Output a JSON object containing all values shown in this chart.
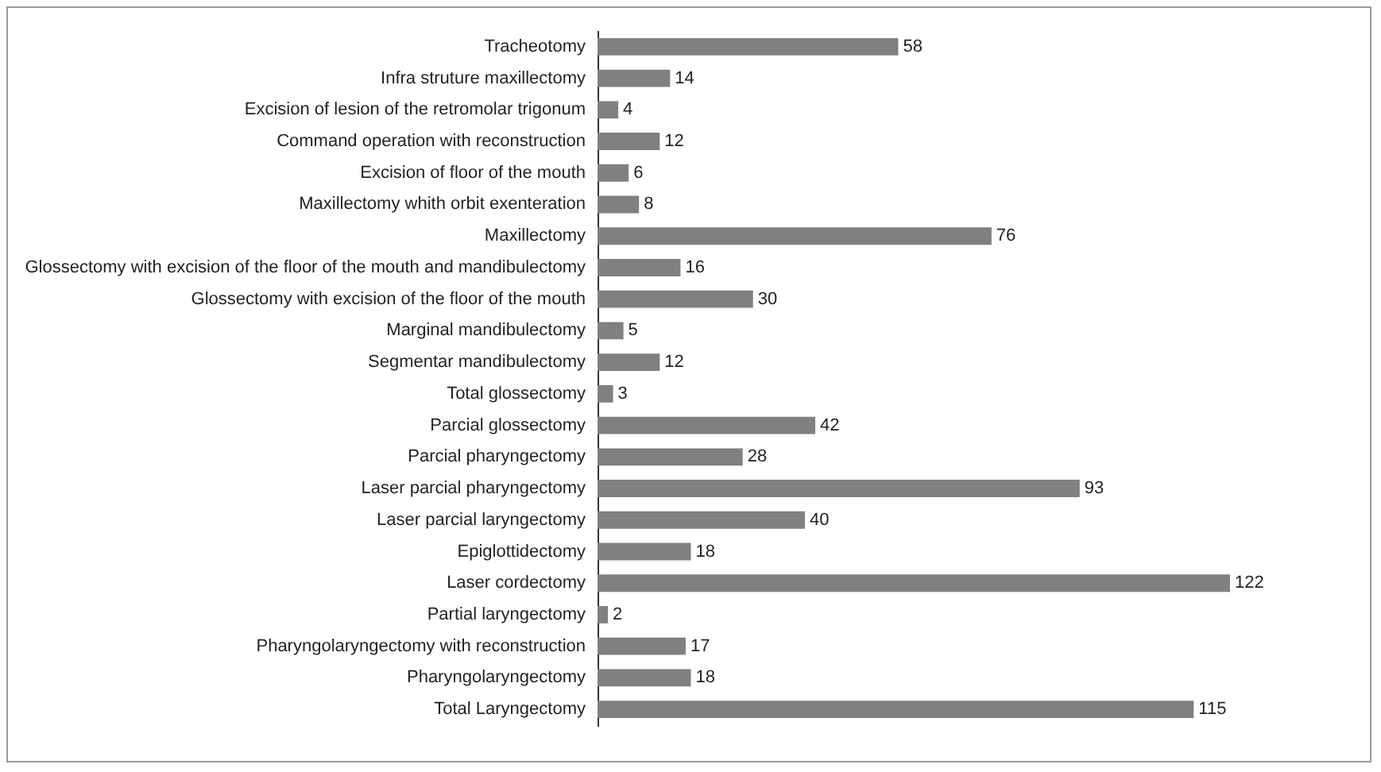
{
  "chart_data": {
    "type": "bar",
    "orientation": "horizontal",
    "data_labels": true,
    "color": "#808080",
    "categories": [
      "Tracheotomy",
      "Infra struture maxillectomy",
      "Excision of lesion of the retromolar trigonum",
      "Command operation with reconstruction",
      "Excision of floor of the mouth",
      "Maxillectomy whith orbit exenteration",
      "Maxillectomy",
      "Glossectomy with excision of the floor of the mouth and mandibulectomy",
      "Glossectomy with excision of the floor of the mouth",
      "Marginal mandibulectomy",
      "Segmentar mandibulectomy",
      "Total glossectomy",
      "Parcial glossectomy",
      "Parcial pharyngectomy",
      "Laser parcial pharyngectomy",
      "Laser parcial laryngectomy",
      "Epiglottidectomy",
      "Laser cordectomy",
      "Partial laryngectomy",
      "Pharyngolaryngectomy with reconstruction",
      "Pharyngolaryngectomy",
      "Total Laryngectomy"
    ],
    "values": [
      58,
      14,
      4,
      12,
      6,
      8,
      76,
      16,
      30,
      5,
      12,
      3,
      42,
      28,
      93,
      40,
      18,
      122,
      2,
      17,
      18,
      115
    ]
  }
}
